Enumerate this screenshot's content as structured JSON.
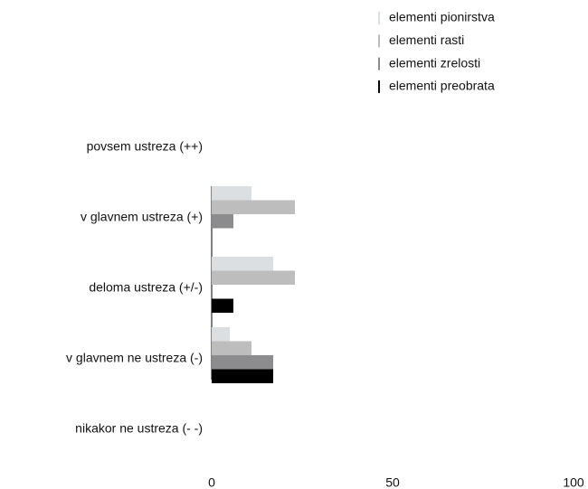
{
  "chart_data": {
    "type": "hbar",
    "categories": [
      "povsem ustreza (++)",
      "v glavnem ustreza (+)",
      "deloma ustreza (+/-)",
      "v glavnem ne ustreza (-)",
      "nikakor ne ustreza (- -)"
    ],
    "series": [
      {
        "name": "elementi pionirstva",
        "color": "#dcdfe1",
        "values": [
          0,
          11,
          17,
          5,
          0
        ]
      },
      {
        "name": "elementi rasti",
        "color": "#bdbdbd",
        "values": [
          0,
          23,
          23,
          11,
          0
        ]
      },
      {
        "name": "elementi zrelosti",
        "color": "#8c8c8e",
        "values": [
          0,
          6,
          0,
          17,
          0
        ]
      },
      {
        "name": "elementi preobrata",
        "color": "#000000",
        "values": [
          0,
          0,
          6,
          17,
          0
        ]
      }
    ],
    "xlim": [
      0,
      100
    ],
    "xticks": [
      0,
      50,
      100
    ],
    "grid": false,
    "legend": "top-right"
  }
}
